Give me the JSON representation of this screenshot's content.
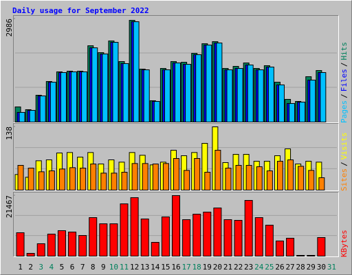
{
  "title": "Daily usage for September 2022",
  "legend_separator": "/",
  "chart_data": [
    {
      "type": "bar",
      "categories": [
        "1",
        "2",
        "3",
        "4",
        "5",
        "6",
        "7",
        "8",
        "9",
        "10",
        "11",
        "12",
        "13",
        "14",
        "15",
        "16",
        "17",
        "18",
        "19",
        "20",
        "21",
        "22",
        "23",
        "24",
        "25",
        "26",
        "27",
        "28",
        "29",
        "30",
        "31"
      ],
      "label_colors": [
        "#000000",
        "#000000",
        "#00805c",
        "#00805c",
        "#000000",
        "#000000",
        "#000000",
        "#000000",
        "#000000",
        "#00805c",
        "#00805c",
        "#000000",
        "#000000",
        "#000000",
        "#000000",
        "#000000",
        "#00805c",
        "#00805c",
        "#000000",
        "#000000",
        "#000000",
        "#000000",
        "#000000",
        "#00805c",
        "#00805c",
        "#000000",
        "#000000",
        "#000000",
        "#000000",
        "#000000",
        "#00805c"
      ],
      "ylim": [
        0,
        2986
      ],
      "yticks": [
        2986
      ],
      "series": [
        {
          "name": "Hits",
          "color": "#00805c",
          "values": [
            438,
            358,
            776,
            1174,
            1453,
            1473,
            1473,
            2209,
            2010,
            2348,
            1751,
            2945,
            1532,
            617,
            1552,
            1751,
            1731,
            1990,
            2268,
            2328,
            1552,
            1612,
            1711,
            1552,
            1632,
            1154,
            657,
            597,
            1313,
            1492,
            0
          ]
        },
        {
          "name": "Files",
          "color": "#0000ff",
          "values": [
            279,
            338,
            756,
            1154,
            1433,
            1453,
            1453,
            2149,
            1970,
            2308,
            1692,
            2905,
            1512,
            597,
            1512,
            1711,
            1672,
            1950,
            2229,
            2289,
            1512,
            1552,
            1652,
            1512,
            1592,
            1075,
            537,
            577,
            1214,
            1433,
            0
          ]
        },
        {
          "name": "Pages",
          "color": "#00c0ff",
          "values": [
            279,
            338,
            756,
            1154,
            1433,
            1453,
            1453,
            2149,
            1970,
            2308,
            1692,
            2905,
            1512,
            597,
            1512,
            1711,
            1672,
            1950,
            2229,
            2289,
            1512,
            1552,
            1652,
            1512,
            1592,
            1075,
            537,
            577,
            1214,
            1433,
            0
          ]
        }
      ]
    },
    {
      "type": "bar",
      "ylim": [
        0,
        138
      ],
      "yticks": [
        138
      ],
      "series": [
        {
          "name": "Visits",
          "color": "#ffff00",
          "values": [
            34,
            28,
            64,
            66,
            81,
            82,
            72,
            82,
            57,
            66,
            61,
            82,
            76,
            55,
            61,
            87,
            75,
            82,
            102,
            138,
            60,
            78,
            78,
            63,
            63,
            75,
            90,
            57,
            63,
            61,
            0
          ]
        },
        {
          "name": "Sites",
          "color": "#ff8000",
          "values": [
            54,
            48,
            40,
            42,
            46,
            49,
            48,
            57,
            37,
            37,
            39,
            58,
            58,
            57,
            58,
            69,
            43,
            69,
            39,
            87,
            48,
            54,
            54,
            51,
            42,
            63,
            66,
            52,
            43,
            27,
            0
          ]
        }
      ]
    },
    {
      "type": "bar",
      "ylim": [
        0,
        21467
      ],
      "yticks": [
        21467
      ],
      "series": [
        {
          "name": "KBytes",
          "color": "#ff0000",
          "values": [
            8296,
            976,
            4392,
            7808,
            9028,
            8540,
            7320,
            13664,
            11468,
            11468,
            18544,
            20740,
            13176,
            4880,
            13908,
            21467,
            12932,
            14884,
            15616,
            17080,
            12932,
            12688,
            19764,
            13664,
            10980,
            5368,
            6344,
            250,
            250,
            6588,
            0
          ]
        }
      ]
    }
  ]
}
